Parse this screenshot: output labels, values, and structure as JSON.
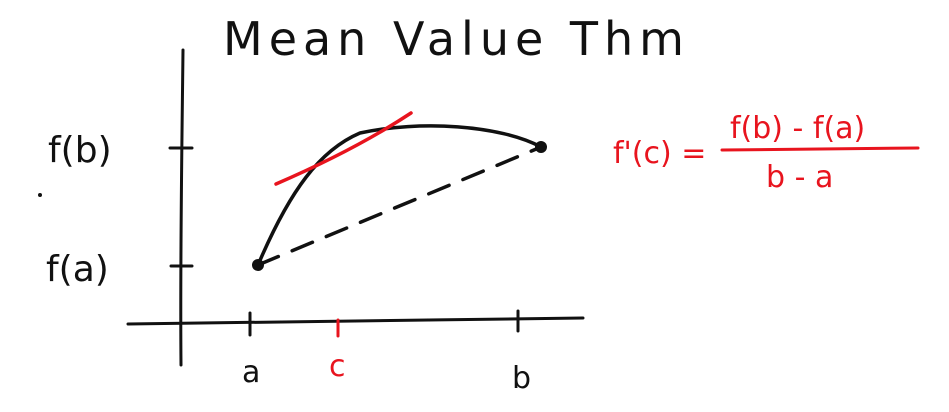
{
  "title": "Mean Value Thm",
  "labels": {
    "fb": "f(b)",
    "fa": "f(a)",
    "a": "a",
    "c": "c",
    "b": "b"
  },
  "formula": {
    "lhs": "f'(c) =",
    "numerator": "f(b) - f(a)",
    "denominator": "b - a"
  },
  "colors": {
    "ink": "#111111",
    "accent": "#e8141e"
  }
}
